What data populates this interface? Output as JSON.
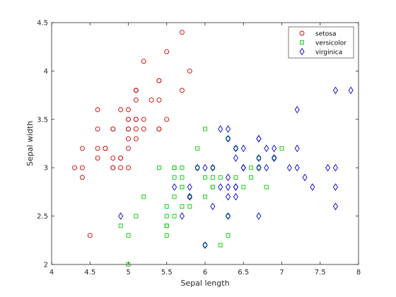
{
  "chart_data": {
    "type": "scatter",
    "title": "",
    "xlabel": "Sepal length",
    "ylabel": "Sepal width",
    "xlim": [
      4,
      8
    ],
    "ylim": [
      2,
      4.5
    ],
    "xticks": [
      "4",
      "4.5",
      "5",
      "5.5",
      "6",
      "6.5",
      "7",
      "7.5",
      "8"
    ],
    "yticks": [
      "2",
      "2.5",
      "3",
      "3.5",
      "4",
      "4.5"
    ],
    "grid": false,
    "legend_position": "top-right",
    "series": [
      {
        "name": "setosa",
        "marker": "circle",
        "color": "#cc0000",
        "points": [
          [
            5.1,
            3.5
          ],
          [
            4.9,
            3.0
          ],
          [
            4.7,
            3.2
          ],
          [
            4.6,
            3.1
          ],
          [
            5.0,
            3.6
          ],
          [
            5.4,
            3.9
          ],
          [
            4.6,
            3.4
          ],
          [
            5.0,
            3.4
          ],
          [
            4.4,
            2.9
          ],
          [
            4.9,
            3.1
          ],
          [
            5.4,
            3.7
          ],
          [
            4.8,
            3.4
          ],
          [
            4.8,
            3.0
          ],
          [
            4.3,
            3.0
          ],
          [
            5.8,
            4.0
          ],
          [
            5.7,
            4.4
          ],
          [
            5.4,
            3.9
          ],
          [
            5.1,
            3.5
          ],
          [
            5.7,
            3.8
          ],
          [
            5.1,
            3.8
          ],
          [
            5.4,
            3.4
          ],
          [
            5.1,
            3.7
          ],
          [
            4.6,
            3.6
          ],
          [
            5.1,
            3.3
          ],
          [
            4.8,
            3.4
          ],
          [
            5.0,
            3.0
          ],
          [
            5.0,
            3.4
          ],
          [
            5.2,
            3.5
          ],
          [
            5.2,
            3.4
          ],
          [
            4.7,
            3.2
          ],
          [
            4.8,
            3.1
          ],
          [
            5.4,
            3.4
          ],
          [
            5.2,
            4.1
          ],
          [
            5.5,
            4.2
          ],
          [
            4.9,
            3.1
          ],
          [
            5.0,
            3.2
          ],
          [
            5.5,
            3.5
          ],
          [
            4.9,
            3.6
          ],
          [
            4.4,
            3.0
          ],
          [
            5.1,
            3.4
          ],
          [
            5.0,
            3.5
          ],
          [
            4.5,
            2.3
          ],
          [
            4.4,
            3.2
          ],
          [
            5.0,
            3.5
          ],
          [
            5.1,
            3.8
          ],
          [
            4.8,
            3.0
          ],
          [
            5.1,
            3.8
          ],
          [
            4.6,
            3.2
          ],
          [
            5.3,
            3.7
          ],
          [
            5.0,
            3.3
          ]
        ]
      },
      {
        "name": "versicolor",
        "marker": "square",
        "color": "#00cc00",
        "points": [
          [
            7.0,
            3.2
          ],
          [
            6.4,
            3.2
          ],
          [
            6.9,
            3.1
          ],
          [
            5.5,
            2.3
          ],
          [
            6.5,
            2.8
          ],
          [
            5.7,
            2.8
          ],
          [
            6.3,
            3.3
          ],
          [
            4.9,
            2.4
          ],
          [
            6.6,
            2.9
          ],
          [
            5.2,
            2.7
          ],
          [
            5.0,
            2.0
          ],
          [
            5.9,
            3.0
          ],
          [
            6.0,
            2.2
          ],
          [
            6.1,
            2.9
          ],
          [
            5.6,
            2.9
          ],
          [
            6.7,
            3.1
          ],
          [
            5.6,
            3.0
          ],
          [
            5.8,
            2.7
          ],
          [
            6.2,
            2.2
          ],
          [
            5.6,
            2.5
          ],
          [
            5.9,
            3.2
          ],
          [
            6.1,
            2.8
          ],
          [
            6.3,
            2.5
          ],
          [
            6.1,
            2.8
          ],
          [
            6.4,
            2.9
          ],
          [
            6.6,
            3.0
          ],
          [
            6.8,
            2.8
          ],
          [
            6.7,
            3.0
          ],
          [
            6.0,
            2.9
          ],
          [
            5.7,
            2.6
          ],
          [
            5.5,
            2.4
          ],
          [
            5.5,
            2.4
          ],
          [
            5.8,
            2.7
          ],
          [
            6.0,
            2.7
          ],
          [
            5.4,
            3.0
          ],
          [
            6.0,
            3.4
          ],
          [
            6.7,
            3.1
          ],
          [
            6.3,
            2.3
          ],
          [
            5.6,
            3.0
          ],
          [
            5.5,
            2.5
          ],
          [
            5.5,
            2.6
          ],
          [
            6.1,
            3.0
          ],
          [
            5.8,
            2.6
          ],
          [
            5.0,
            2.3
          ],
          [
            5.6,
            2.7
          ],
          [
            5.7,
            3.0
          ],
          [
            5.7,
            2.9
          ],
          [
            6.2,
            2.9
          ],
          [
            5.1,
            2.5
          ],
          [
            5.7,
            2.8
          ]
        ]
      },
      {
        "name": "virginica",
        "marker": "diamond",
        "color": "#0000cc",
        "points": [
          [
            6.3,
            3.3
          ],
          [
            5.8,
            2.7
          ],
          [
            7.1,
            3.0
          ],
          [
            6.3,
            2.9
          ],
          [
            6.5,
            3.0
          ],
          [
            7.6,
            3.0
          ],
          [
            4.9,
            2.5
          ],
          [
            7.3,
            2.9
          ],
          [
            6.7,
            2.5
          ],
          [
            7.2,
            3.6
          ],
          [
            6.5,
            3.2
          ],
          [
            6.4,
            2.7
          ],
          [
            6.8,
            3.0
          ],
          [
            5.7,
            2.5
          ],
          [
            5.8,
            2.8
          ],
          [
            6.4,
            3.2
          ],
          [
            6.5,
            3.0
          ],
          [
            7.7,
            3.8
          ],
          [
            7.7,
            2.6
          ],
          [
            6.0,
            2.2
          ],
          [
            6.9,
            3.2
          ],
          [
            5.6,
            2.8
          ],
          [
            7.7,
            2.8
          ],
          [
            6.3,
            2.7
          ],
          [
            6.7,
            3.3
          ],
          [
            7.2,
            3.2
          ],
          [
            6.2,
            2.8
          ],
          [
            6.1,
            3.0
          ],
          [
            6.4,
            2.8
          ],
          [
            7.2,
            3.0
          ],
          [
            7.4,
            2.8
          ],
          [
            7.9,
            3.8
          ],
          [
            6.4,
            2.8
          ],
          [
            6.3,
            2.8
          ],
          [
            6.1,
            2.6
          ],
          [
            7.7,
            3.0
          ],
          [
            6.3,
            3.4
          ],
          [
            6.4,
            3.1
          ],
          [
            6.0,
            3.0
          ],
          [
            6.9,
            3.1
          ],
          [
            6.7,
            3.1
          ],
          [
            6.9,
            3.1
          ],
          [
            5.8,
            2.7
          ],
          [
            6.8,
            3.2
          ],
          [
            6.7,
            3.3
          ],
          [
            6.7,
            3.0
          ],
          [
            6.3,
            2.5
          ],
          [
            6.5,
            3.0
          ],
          [
            6.2,
            3.4
          ],
          [
            5.9,
            3.0
          ]
        ]
      }
    ]
  }
}
